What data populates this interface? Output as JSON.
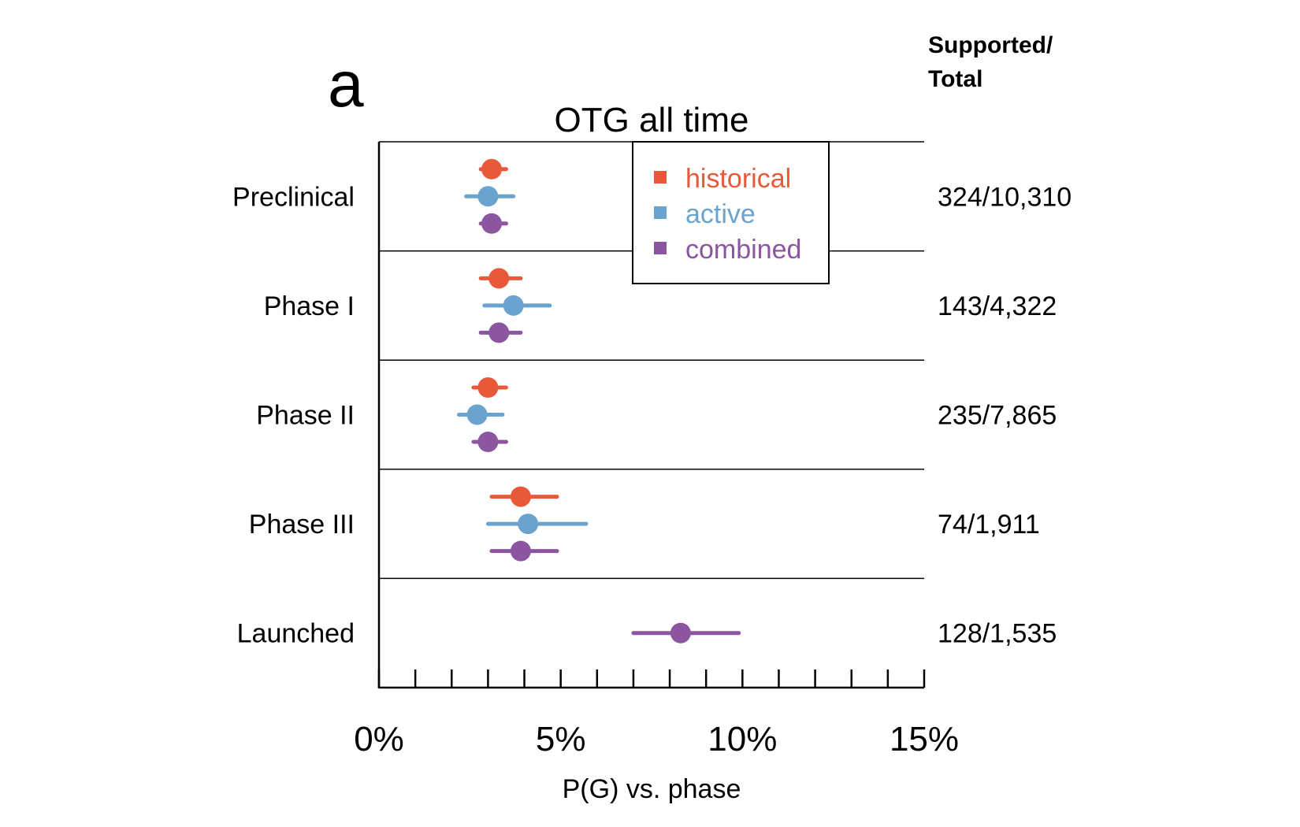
{
  "chart_data": {
    "type": "scatter",
    "panel_label": "a",
    "title": "OTG all time",
    "xlabel": "P(G) vs. phase",
    "xlim": [
      0,
      15
    ],
    "x_ticks": [
      "0%",
      "5%",
      "10%",
      "15%"
    ],
    "x_tick_values": [
      0,
      5,
      10,
      15
    ],
    "x_minor_step": 1,
    "right_header": [
      "Supported/",
      "Total"
    ],
    "categories": [
      "Preclinical",
      "Phase I",
      "Phase II",
      "Phase III",
      "Launched"
    ],
    "counts": [
      "324/10,310",
      "143/4,322",
      "235/7,865",
      "74/1,911",
      "128/1,535"
    ],
    "legend_position": "top-center",
    "series": [
      {
        "name": "historical",
        "color": "#E8593A",
        "values": [
          3.1,
          3.3,
          3.0,
          3.9,
          null
        ],
        "ci_low": [
          2.8,
          2.8,
          2.6,
          3.1,
          null
        ],
        "ci_high": [
          3.5,
          3.9,
          3.5,
          4.9,
          null
        ]
      },
      {
        "name": "active",
        "color": "#6BA3CF",
        "values": [
          3.0,
          3.7,
          2.7,
          4.1,
          null
        ],
        "ci_low": [
          2.4,
          2.9,
          2.2,
          3.0,
          null
        ],
        "ci_high": [
          3.7,
          4.7,
          3.4,
          5.7,
          null
        ]
      },
      {
        "name": "combined",
        "color": "#8B55A0",
        "values": [
          3.1,
          3.3,
          3.0,
          3.9,
          8.3
        ],
        "ci_low": [
          2.8,
          2.8,
          2.6,
          3.1,
          7.0
        ],
        "ci_high": [
          3.5,
          3.9,
          3.5,
          4.9,
          9.9
        ]
      }
    ]
  }
}
